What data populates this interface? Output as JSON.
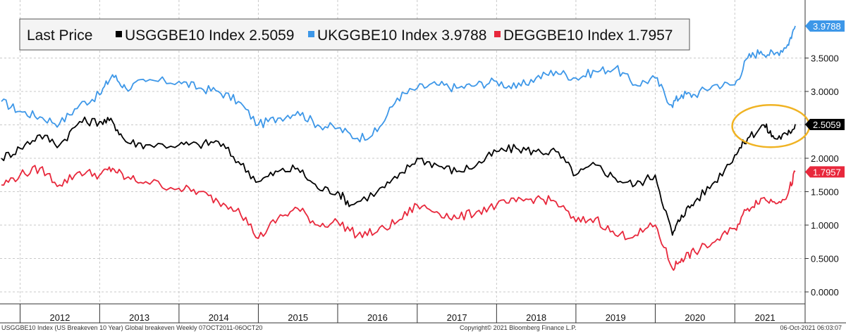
{
  "chart_data": {
    "type": "line",
    "legend": {
      "title": "Last Price",
      "entries": [
        {
          "label": "USGGBE10 Index",
          "value": "2.5059"
        },
        {
          "label": "UKGGBE10 Index",
          "value": "3.9788"
        },
        {
          "label": "DEGGBE10 Index",
          "value": "1.7957"
        }
      ]
    },
    "x_axis": {
      "type": "date",
      "range": [
        "2011-10-07",
        "2021-10-06"
      ],
      "tick_labels": [
        "2012",
        "2013",
        "2014",
        "2015",
        "2016",
        "2017",
        "2018",
        "2019",
        "2020",
        "2021"
      ]
    },
    "y_axis": {
      "position": "right",
      "range": [
        0,
        4.1
      ],
      "tick_labels": [
        "0.0000",
        "0.5000",
        "1.0000",
        "1.5000",
        "2.0000",
        "2.5000",
        "3.0000",
        "3.5000"
      ]
    },
    "grid": true,
    "series": [
      {
        "name": "UKGGBE10 Index",
        "color": "#3d97e8",
        "last_value": "3.9788",
        "points": [
          [
            "2011-10-07",
            2.85
          ],
          [
            "2012-01-01",
            2.7
          ],
          [
            "2012-04-01",
            2.62
          ],
          [
            "2012-07-01",
            2.52
          ],
          [
            "2012-10-01",
            2.8
          ],
          [
            "2013-01-01",
            2.95
          ],
          [
            "2013-03-01",
            3.25
          ],
          [
            "2013-05-01",
            3.05
          ],
          [
            "2013-08-01",
            3.15
          ],
          [
            "2014-01-01",
            3.15
          ],
          [
            "2014-04-01",
            3.05
          ],
          [
            "2014-07-01",
            3.0
          ],
          [
            "2014-10-01",
            2.85
          ],
          [
            "2015-01-01",
            2.5
          ],
          [
            "2015-04-01",
            2.6
          ],
          [
            "2015-07-01",
            2.7
          ],
          [
            "2015-10-01",
            2.5
          ],
          [
            "2016-01-01",
            2.45
          ],
          [
            "2016-04-01",
            2.3
          ],
          [
            "2016-07-01",
            2.4
          ],
          [
            "2016-10-01",
            2.9
          ],
          [
            "2017-01-01",
            3.05
          ],
          [
            "2017-04-01",
            3.1
          ],
          [
            "2017-07-01",
            3.05
          ],
          [
            "2017-10-01",
            3.1
          ],
          [
            "2018-01-01",
            3.15
          ],
          [
            "2018-04-01",
            3.05
          ],
          [
            "2018-07-01",
            3.2
          ],
          [
            "2018-10-01",
            3.3
          ],
          [
            "2019-01-01",
            3.2
          ],
          [
            "2019-04-01",
            3.3
          ],
          [
            "2019-07-01",
            3.35
          ],
          [
            "2019-10-01",
            3.1
          ],
          [
            "2020-01-01",
            3.2
          ],
          [
            "2020-03-15",
            2.8
          ],
          [
            "2020-05-01",
            2.95
          ],
          [
            "2020-07-01",
            2.95
          ],
          [
            "2020-10-01",
            3.1
          ],
          [
            "2021-01-01",
            3.1
          ],
          [
            "2021-03-01",
            3.5
          ],
          [
            "2021-05-01",
            3.6
          ],
          [
            "2021-07-01",
            3.55
          ],
          [
            "2021-09-01",
            3.7
          ],
          [
            "2021-10-06",
            3.98
          ]
        ]
      },
      {
        "name": "USGGBE10 Index",
        "color": "#000000",
        "last_value": "2.5059",
        "points": [
          [
            "2011-10-07",
            2.0
          ],
          [
            "2012-01-01",
            2.15
          ],
          [
            "2012-04-01",
            2.35
          ],
          [
            "2012-07-01",
            2.2
          ],
          [
            "2012-10-01",
            2.55
          ],
          [
            "2013-01-01",
            2.55
          ],
          [
            "2013-03-01",
            2.55
          ],
          [
            "2013-05-01",
            2.25
          ],
          [
            "2013-08-01",
            2.2
          ],
          [
            "2014-01-01",
            2.2
          ],
          [
            "2014-04-01",
            2.2
          ],
          [
            "2014-07-01",
            2.25
          ],
          [
            "2014-10-01",
            1.95
          ],
          [
            "2015-01-01",
            1.65
          ],
          [
            "2015-04-01",
            1.8
          ],
          [
            "2015-07-01",
            1.85
          ],
          [
            "2015-10-01",
            1.55
          ],
          [
            "2016-01-01",
            1.5
          ],
          [
            "2016-03-01",
            1.3
          ],
          [
            "2016-07-01",
            1.5
          ],
          [
            "2016-10-01",
            1.7
          ],
          [
            "2017-01-01",
            2.0
          ],
          [
            "2017-04-01",
            1.9
          ],
          [
            "2017-07-01",
            1.8
          ],
          [
            "2017-10-01",
            1.9
          ],
          [
            "2018-01-01",
            2.1
          ],
          [
            "2018-04-01",
            2.15
          ],
          [
            "2018-07-01",
            2.1
          ],
          [
            "2018-10-01",
            2.1
          ],
          [
            "2019-01-01",
            1.75
          ],
          [
            "2019-04-01",
            1.9
          ],
          [
            "2019-07-01",
            1.7
          ],
          [
            "2019-10-01",
            1.6
          ],
          [
            "2020-01-01",
            1.75
          ],
          [
            "2020-03-20",
            0.85
          ],
          [
            "2020-05-01",
            1.15
          ],
          [
            "2020-07-01",
            1.35
          ],
          [
            "2020-10-01",
            1.65
          ],
          [
            "2021-01-01",
            2.05
          ],
          [
            "2021-03-01",
            2.3
          ],
          [
            "2021-05-15",
            2.5
          ],
          [
            "2021-07-01",
            2.3
          ],
          [
            "2021-09-01",
            2.35
          ],
          [
            "2021-10-06",
            2.51
          ]
        ]
      },
      {
        "name": "DEGGBE10 Index",
        "color": "#e8283c",
        "last_value": "1.7957",
        "points": [
          [
            "2011-10-07",
            1.6
          ],
          [
            "2012-01-01",
            1.75
          ],
          [
            "2012-04-01",
            1.85
          ],
          [
            "2012-07-01",
            1.6
          ],
          [
            "2012-10-01",
            1.8
          ],
          [
            "2013-01-01",
            1.75
          ],
          [
            "2013-03-01",
            1.85
          ],
          [
            "2013-05-01",
            1.7
          ],
          [
            "2013-08-01",
            1.65
          ],
          [
            "2014-01-01",
            1.55
          ],
          [
            "2014-04-01",
            1.5
          ],
          [
            "2014-07-01",
            1.35
          ],
          [
            "2014-10-01",
            1.25
          ],
          [
            "2015-01-01",
            0.8
          ],
          [
            "2015-04-01",
            1.1
          ],
          [
            "2015-07-01",
            1.25
          ],
          [
            "2015-10-01",
            1.0
          ],
          [
            "2016-01-01",
            1.05
          ],
          [
            "2016-04-01",
            0.85
          ],
          [
            "2016-07-01",
            0.9
          ],
          [
            "2016-10-01",
            1.05
          ],
          [
            "2017-01-01",
            1.3
          ],
          [
            "2017-04-01",
            1.2
          ],
          [
            "2017-07-01",
            1.1
          ],
          [
            "2017-10-01",
            1.2
          ],
          [
            "2018-01-01",
            1.3
          ],
          [
            "2018-04-01",
            1.35
          ],
          [
            "2018-07-01",
            1.4
          ],
          [
            "2018-10-01",
            1.35
          ],
          [
            "2019-01-01",
            1.05
          ],
          [
            "2019-04-01",
            1.1
          ],
          [
            "2019-07-01",
            0.85
          ],
          [
            "2019-10-01",
            0.85
          ],
          [
            "2020-01-01",
            1.0
          ],
          [
            "2020-03-20",
            0.35
          ],
          [
            "2020-05-01",
            0.5
          ],
          [
            "2020-07-01",
            0.6
          ],
          [
            "2020-10-01",
            0.75
          ],
          [
            "2021-01-01",
            0.95
          ],
          [
            "2021-03-01",
            1.25
          ],
          [
            "2021-05-01",
            1.4
          ],
          [
            "2021-07-01",
            1.35
          ],
          [
            "2021-09-01",
            1.45
          ],
          [
            "2021-10-06",
            1.8
          ]
        ]
      }
    ],
    "annotations": [
      {
        "type": "ellipse",
        "color": "#f0b323",
        "around": {
          "from": "2021-01-15",
          "to": "2021-10-06",
          "y": 2.45
        }
      }
    ]
  },
  "footer": {
    "left": "USGGBE10 Index (US Breakeven 10 Year) Global breakeven  Weekly 07OCT2011-06OCT20",
    "center": "Copyright© 2021 Bloomberg Finance L.P.",
    "right": "06-Oct-2021 06:03:07"
  }
}
